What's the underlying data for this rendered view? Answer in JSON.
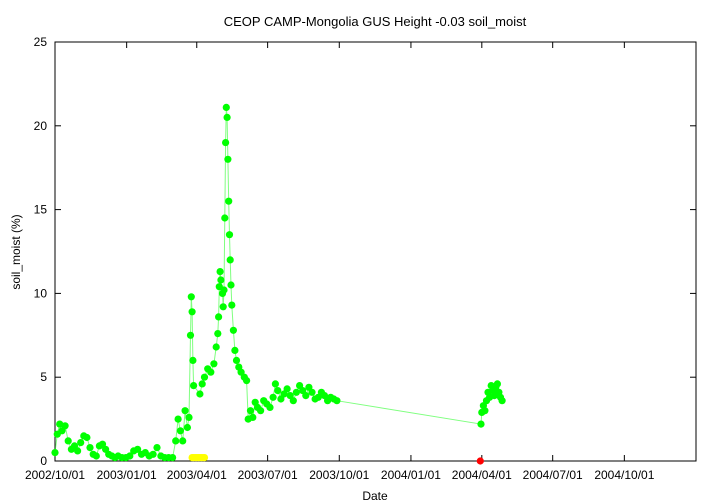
{
  "chart_data": {
    "type": "scatter",
    "title": "CEOP CAMP-Mongolia GUS Height -0.03 soil_moist",
    "xlabel": "Date",
    "ylabel": "soil_moist (%)",
    "xlim": [
      "2002-10-01",
      "2005-01-01"
    ],
    "ylim": [
      0,
      25
    ],
    "x_ticks": [
      "2002/10/01",
      "2003/01/01",
      "2003/04/01",
      "2003/07/01",
      "2003/10/01",
      "2004/01/01",
      "2004/04/01",
      "2004/07/01",
      "2004/10/01"
    ],
    "y_ticks": [
      "0",
      "5",
      "10",
      "15",
      "20",
      "25"
    ],
    "grid": false,
    "legend": "none",
    "series": [
      {
        "color": "#00ff00",
        "points": [
          [
            "2002-10-01",
            0.5
          ],
          [
            "2002-10-04",
            1.6
          ],
          [
            "2002-10-07",
            2.2
          ],
          [
            "2002-10-10",
            1.8
          ],
          [
            "2002-10-14",
            2.1
          ],
          [
            "2002-10-18",
            1.2
          ],
          [
            "2002-10-22",
            0.7
          ],
          [
            "2002-10-26",
            0.9
          ],
          [
            "2002-10-30",
            0.6
          ],
          [
            "2002-11-03",
            1.1
          ],
          [
            "2002-11-07",
            1.5
          ],
          [
            "2002-11-11",
            1.4
          ],
          [
            "2002-11-15",
            0.8
          ],
          [
            "2002-11-19",
            0.4
          ],
          [
            "2002-11-23",
            0.3
          ],
          [
            "2002-11-27",
            0.9
          ],
          [
            "2002-12-01",
            1.0
          ],
          [
            "2002-12-05",
            0.7
          ],
          [
            "2002-12-09",
            0.4
          ],
          [
            "2002-12-13",
            0.3
          ],
          [
            "2002-12-17",
            0.2
          ],
          [
            "2002-12-21",
            0.3
          ],
          [
            "2002-12-26",
            0.2
          ],
          [
            "2002-12-31",
            0.2
          ],
          [
            "2003-01-05",
            0.3
          ],
          [
            "2003-01-10",
            0.6
          ],
          [
            "2003-01-15",
            0.7
          ],
          [
            "2003-01-20",
            0.4
          ],
          [
            "2003-01-25",
            0.5
          ],
          [
            "2003-01-30",
            0.3
          ],
          [
            "2003-02-04",
            0.4
          ],
          [
            "2003-02-09",
            0.8
          ],
          [
            "2003-02-14",
            0.3
          ],
          [
            "2003-02-19",
            0.2
          ],
          [
            "2003-02-24",
            0.2
          ],
          [
            "2003-03-01",
            0.2
          ],
          [
            "2003-03-05",
            1.2
          ],
          [
            "2003-03-08",
            2.5
          ],
          [
            "2003-03-11",
            1.8
          ],
          [
            "2003-03-14",
            1.2
          ],
          [
            "2003-03-17",
            3.0
          ],
          [
            "2003-03-20",
            2.0
          ],
          [
            "2003-03-22",
            2.6
          ],
          [
            "2003-03-24",
            7.5
          ],
          [
            "2003-03-25",
            9.8
          ],
          [
            "2003-03-26",
            8.9
          ],
          [
            "2003-03-27",
            6.0
          ],
          [
            "2003-03-28",
            4.5
          ],
          [
            "2003-04-05",
            4.0
          ],
          [
            "2003-04-08",
            4.6
          ],
          [
            "2003-04-11",
            5.0
          ],
          [
            "2003-04-15",
            5.5
          ],
          [
            "2003-04-19",
            5.3
          ],
          [
            "2003-04-23",
            5.8
          ],
          [
            "2003-04-26",
            6.8
          ],
          [
            "2003-04-28",
            7.6
          ],
          [
            "2003-04-29",
            8.6
          ],
          [
            "2003-04-30",
            10.4
          ],
          [
            "2003-05-01",
            11.3
          ],
          [
            "2003-05-02",
            10.8
          ],
          [
            "2003-05-04",
            10.0
          ],
          [
            "2003-05-05",
            9.2
          ],
          [
            "2003-05-06",
            10.2
          ],
          [
            "2003-05-07",
            14.5
          ],
          [
            "2003-05-08",
            19.0
          ],
          [
            "2003-05-09",
            21.1
          ],
          [
            "2003-05-10",
            20.5
          ],
          [
            "2003-05-11",
            18.0
          ],
          [
            "2003-05-12",
            15.5
          ],
          [
            "2003-05-13",
            13.5
          ],
          [
            "2003-05-14",
            12.0
          ],
          [
            "2003-05-15",
            10.5
          ],
          [
            "2003-05-16",
            9.3
          ],
          [
            "2003-05-18",
            7.8
          ],
          [
            "2003-05-20",
            6.6
          ],
          [
            "2003-05-22",
            6.0
          ],
          [
            "2003-05-25",
            5.6
          ],
          [
            "2003-05-28",
            5.3
          ],
          [
            "2003-06-01",
            5.0
          ],
          [
            "2003-06-04",
            4.8
          ],
          [
            "2003-06-06",
            2.5
          ],
          [
            "2003-06-09",
            3.0
          ],
          [
            "2003-06-12",
            2.6
          ],
          [
            "2003-06-15",
            3.5
          ],
          [
            "2003-06-18",
            3.2
          ],
          [
            "2003-06-22",
            3.0
          ],
          [
            "2003-06-26",
            3.6
          ],
          [
            "2003-06-30",
            3.4
          ],
          [
            "2003-07-04",
            3.2
          ],
          [
            "2003-07-08",
            3.8
          ],
          [
            "2003-07-11",
            4.6
          ],
          [
            "2003-07-14",
            4.2
          ],
          [
            "2003-07-18",
            3.7
          ],
          [
            "2003-07-22",
            4.0
          ],
          [
            "2003-07-26",
            4.3
          ],
          [
            "2003-07-30",
            3.9
          ],
          [
            "2003-08-03",
            3.6
          ],
          [
            "2003-08-07",
            4.1
          ],
          [
            "2003-08-11",
            4.5
          ],
          [
            "2003-08-15",
            4.2
          ],
          [
            "2003-08-19",
            3.9
          ],
          [
            "2003-08-23",
            4.4
          ],
          [
            "2003-08-27",
            4.1
          ],
          [
            "2003-08-31",
            3.7
          ],
          [
            "2003-09-04",
            3.8
          ],
          [
            "2003-09-08",
            4.1
          ],
          [
            "2003-09-12",
            3.9
          ],
          [
            "2003-09-16",
            3.6
          ],
          [
            "2003-09-20",
            3.8
          ],
          [
            "2003-09-24",
            3.7
          ],
          [
            "2003-09-28",
            3.6
          ],
          [
            "2004-03-31",
            2.2
          ],
          [
            "2004-04-01",
            2.9
          ],
          [
            "2004-04-03",
            3.3
          ],
          [
            "2004-04-05",
            3.0
          ],
          [
            "2004-04-07",
            3.6
          ],
          [
            "2004-04-09",
            4.1
          ],
          [
            "2004-04-11",
            3.8
          ],
          [
            "2004-04-13",
            4.5
          ],
          [
            "2004-04-15",
            4.2
          ],
          [
            "2004-04-17",
            3.9
          ],
          [
            "2004-04-19",
            4.4
          ],
          [
            "2004-04-21",
            4.6
          ],
          [
            "2004-04-23",
            4.1
          ],
          [
            "2004-04-25",
            3.8
          ],
          [
            "2004-04-27",
            3.6
          ]
        ]
      },
      {
        "color": "#ffff00",
        "points": [
          [
            "2003-03-26",
            0.2
          ],
          [
            "2003-03-28",
            0.2
          ],
          [
            "2003-03-30",
            0.2
          ],
          [
            "2003-04-01",
            0.2
          ],
          [
            "2003-04-03",
            0.2
          ],
          [
            "2003-04-05",
            0.2
          ],
          [
            "2003-04-07",
            0.2
          ],
          [
            "2003-04-09",
            0.2
          ],
          [
            "2003-04-11",
            0.2
          ]
        ]
      },
      {
        "color": "#ff0000",
        "points": [
          [
            "2004-03-30",
            0.0
          ]
        ]
      }
    ]
  }
}
